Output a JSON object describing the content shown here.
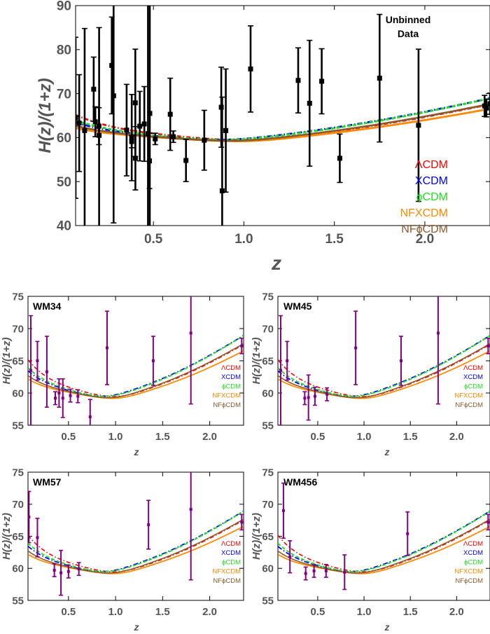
{
  "colors": {
    "LCDM": "#ff0000",
    "XCDM": "#0000ff",
    "phiCDM": "#22dd22",
    "NFXCDM": "#ff8800",
    "NFphiCDM": "#8b5a2b",
    "data_top": "#000000",
    "data_panels": "#800080",
    "axis_text": "#555555"
  },
  "legend": [
    "ΛCDM",
    "XCDM",
    "ϕCDM",
    "NFXCDM",
    "NFϕCDM"
  ],
  "chart_data": [
    {
      "type": "scatter",
      "title": "",
      "annotation": [
        "Unbinned",
        "Data"
      ],
      "xlabel": "z",
      "ylabel": "H(z)/(1+z)",
      "xlim": [
        0.07,
        2.36
      ],
      "ylim": [
        40,
        90
      ],
      "xticks": [
        "0.5",
        "1.0",
        "1.5",
        "2.0"
      ],
      "yticks": [
        "40",
        "50",
        "60",
        "70",
        "80",
        "90"
      ],
      "points": [
        {
          "x": 0.07,
          "y": 64.5,
          "err": 18.3
        },
        {
          "x": 0.09,
          "y": 63.3,
          "err": 11.0
        },
        {
          "x": 0.12,
          "y": 61.6,
          "err": 23.2
        },
        {
          "x": 0.17,
          "y": 71.0,
          "err": 7.3
        },
        {
          "x": 0.179,
          "y": 63.6,
          "err": 3.4
        },
        {
          "x": 0.199,
          "y": 62.6,
          "err": 4.2
        },
        {
          "x": 0.2,
          "y": 60.5,
          "err": 24.5
        },
        {
          "x": 0.27,
          "y": 76.4,
          "err": 11.0
        },
        {
          "x": 0.28,
          "y": 69.5,
          "err": 28.9
        },
        {
          "x": 0.352,
          "y": 61.7,
          "err": 10.4
        },
        {
          "x": 0.38,
          "y": 59.1,
          "err": 1.4
        },
        {
          "x": 0.3802,
          "y": 60.0,
          "err": 9.8
        },
        {
          "x": 0.4,
          "y": 67.9,
          "err": 12.2
        },
        {
          "x": 0.4004,
          "y": 55.3,
          "err": 7.2
        },
        {
          "x": 0.4247,
          "y": 62.6,
          "err": 7.9
        },
        {
          "x": 0.4497,
          "y": 63.1,
          "err": 8.5
        },
        {
          "x": 0.47,
          "y": 60.9,
          "err": 34.0
        },
        {
          "x": 0.4783,
          "y": 54.7,
          "err": 6.3
        },
        {
          "x": 0.48,
          "y": 65.5,
          "err": 40.5
        },
        {
          "x": 0.51,
          "y": 59.7,
          "err": 1.3
        },
        {
          "x": 0.593,
          "y": 65.3,
          "err": 8.2
        },
        {
          "x": 0.61,
          "y": 60.2,
          "err": 1.3
        },
        {
          "x": 0.68,
          "y": 54.8,
          "err": 4.8
        },
        {
          "x": 0.781,
          "y": 59.4,
          "err": 6.8
        },
        {
          "x": 0.875,
          "y": 66.9,
          "err": 9.1
        },
        {
          "x": 0.88,
          "y": 47.9,
          "err": 21.3
        },
        {
          "x": 0.9,
          "y": 61.6,
          "err": 14.0
        },
        {
          "x": 1.037,
          "y": 75.6,
          "err": 9.8
        },
        {
          "x": 1.3,
          "y": 73.0,
          "err": 7.4
        },
        {
          "x": 1.363,
          "y": 67.8,
          "err": 14.3
        },
        {
          "x": 1.43,
          "y": 72.8,
          "err": 7.4
        },
        {
          "x": 1.53,
          "y": 55.3,
          "err": 5.5
        },
        {
          "x": 1.75,
          "y": 73.5,
          "err": 14.5
        },
        {
          "x": 1.965,
          "y": 62.8,
          "err": 17.3
        },
        {
          "x": 2.33,
          "y": 67.2,
          "err": 2.4
        },
        {
          "x": 2.34,
          "y": 66.7,
          "err": 2.0
        },
        {
          "x": 2.36,
          "y": 67.7,
          "err": 2.4
        }
      ]
    },
    {
      "type": "scatter",
      "title": "WM34",
      "xlabel": "z",
      "ylabel": "H(z)/(1+z)",
      "xlim": [
        0.07,
        2.36
      ],
      "ylim": [
        55,
        75
      ],
      "xticks": [
        "0.5",
        "1.0",
        "1.5",
        "2.0"
      ],
      "yticks": [
        "55",
        "60",
        "65",
        "70",
        "75"
      ],
      "points": [
        {
          "x": 0.1,
          "y": 63.5,
          "err": 8.5
        },
        {
          "x": 0.17,
          "y": 65.0,
          "err": 3.0
        },
        {
          "x": 0.27,
          "y": 63.3,
          "err": 5.5
        },
        {
          "x": 0.36,
          "y": 59.2,
          "err": 1.0
        },
        {
          "x": 0.4,
          "y": 60.0,
          "err": 2.2
        },
        {
          "x": 0.44,
          "y": 59.2,
          "err": 3.0
        },
        {
          "x": 0.52,
          "y": 59.6,
          "err": 1.0
        },
        {
          "x": 0.6,
          "y": 59.5,
          "err": 1.0
        },
        {
          "x": 0.73,
          "y": 56.3,
          "err": 2.7
        },
        {
          "x": 0.91,
          "y": 67.0,
          "err": 5.7
        },
        {
          "x": 1.4,
          "y": 65.0,
          "err": 3.8
        },
        {
          "x": 1.8,
          "y": 69.3,
          "err": 11.0
        },
        {
          "x": 2.34,
          "y": 67.3,
          "err": 1.2
        }
      ]
    },
    {
      "type": "scatter",
      "title": "WM45",
      "xlabel": "z",
      "ylabel": "H(z)/(1+z)",
      "xlim": [
        0.07,
        2.36
      ],
      "ylim": [
        55,
        75
      ],
      "xticks": [
        "0.5",
        "1.0",
        "1.5",
        "2.0"
      ],
      "yticks": [
        "55",
        "60",
        "65",
        "70",
        "75"
      ],
      "points": [
        {
          "x": 0.1,
          "y": 63.5,
          "err": 8.5
        },
        {
          "x": 0.17,
          "y": 65.0,
          "err": 3.0
        },
        {
          "x": 0.36,
          "y": 59.2,
          "err": 1.0
        },
        {
          "x": 0.4,
          "y": 59.3,
          "err": 3.5
        },
        {
          "x": 0.47,
          "y": 59.5,
          "err": 1.4
        },
        {
          "x": 0.6,
          "y": 59.8,
          "err": 1.0
        },
        {
          "x": 0.91,
          "y": 67.0,
          "err": 5.7
        },
        {
          "x": 1.4,
          "y": 65.0,
          "err": 3.8
        },
        {
          "x": 1.8,
          "y": 69.3,
          "err": 11.0
        },
        {
          "x": 2.34,
          "y": 67.3,
          "err": 1.2
        }
      ]
    },
    {
      "type": "scatter",
      "title": "WM57",
      "xlabel": "z",
      "ylabel": "H(z)/(1+z)",
      "xlim": [
        0.07,
        2.36
      ],
      "ylim": [
        55,
        75
      ],
      "xticks": [
        "0.5",
        "1.0",
        "1.5",
        "2.0"
      ],
      "yticks": [
        "55",
        "60",
        "65",
        "70",
        "75"
      ],
      "points": [
        {
          "x": 0.08,
          "y": 68.0,
          "err": 4.0
        },
        {
          "x": 0.17,
          "y": 64.8,
          "err": 3.0
        },
        {
          "x": 0.35,
          "y": 59.7,
          "err": 1.0
        },
        {
          "x": 0.42,
          "y": 59.3,
          "err": 3.5
        },
        {
          "x": 0.5,
          "y": 59.5,
          "err": 1.0
        },
        {
          "x": 0.61,
          "y": 59.9,
          "err": 1.0
        },
        {
          "x": 1.35,
          "y": 66.8,
          "err": 3.8
        },
        {
          "x": 1.8,
          "y": 69.2,
          "err": 11.0
        },
        {
          "x": 2.34,
          "y": 67.2,
          "err": 1.2
        }
      ]
    },
    {
      "type": "scatter",
      "title": "WM456",
      "xlabel": "z",
      "ylabel": "H(z)/(1+z)",
      "xlim": [
        0.07,
        2.36
      ],
      "ylim": [
        55,
        75
      ],
      "xticks": [
        "0.5",
        "1.0",
        "1.5",
        "2.0"
      ],
      "yticks": [
        "55",
        "60",
        "65",
        "70",
        "75"
      ],
      "points": [
        {
          "x": 0.13,
          "y": 69.0,
          "err": 4.3
        },
        {
          "x": 0.2,
          "y": 61.8,
          "err": 2.5
        },
        {
          "x": 0.37,
          "y": 59.2,
          "err": 1.0
        },
        {
          "x": 0.46,
          "y": 59.6,
          "err": 1.0
        },
        {
          "x": 0.59,
          "y": 59.6,
          "err": 1.0
        },
        {
          "x": 0.79,
          "y": 59.4,
          "err": 2.7
        },
        {
          "x": 1.47,
          "y": 65.4,
          "err": 3.4
        },
        {
          "x": 2.34,
          "y": 67.2,
          "err": 1.2
        }
      ]
    }
  ],
  "model_curves": [
    {
      "name": "ΛCDM",
      "dash": "6 3 1.5 3",
      "width": 2,
      "shape": [
        6.8,
        0.0,
        0.95,
        7.2
      ]
    },
    {
      "name": "XCDM",
      "dash": "7 3 1.5 3",
      "width": 2.2,
      "shape": [
        4.6,
        0.02,
        0.82,
        7.4
      ]
    },
    {
      "name": "ϕCDM",
      "dash": "5 3",
      "width": 2.4,
      "shape": [
        5.2,
        0.02,
        0.85,
        7.6
      ]
    },
    {
      "name": "NFXCDM",
      "dash": "",
      "width": 2.2,
      "shape": [
        3.2,
        -0.15,
        0.95,
        6.4
      ]
    },
    {
      "name": "NFϕCDM",
      "dash": "",
      "width": 2.0,
      "shape": [
        3.8,
        -0.1,
        0.9,
        7.0
      ]
    }
  ]
}
